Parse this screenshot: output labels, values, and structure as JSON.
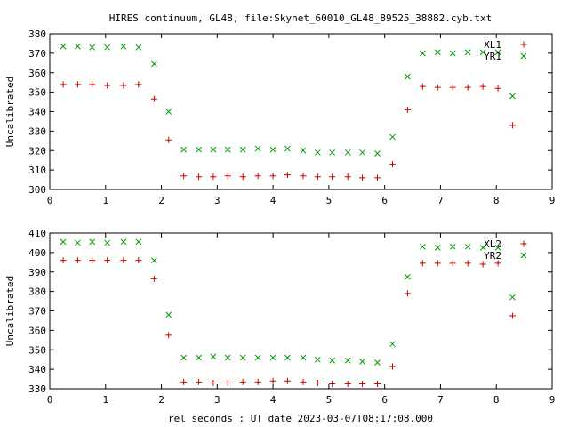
{
  "title": "HIRES continuum, GL48, file:Skynet_60010_GL48_89525_38882.cyb.txt",
  "xlabel": "rel seconds : UT date 2023-03-07T08:17:08.000",
  "colors": {
    "red": "#cc0000",
    "green": "#009900"
  },
  "chart_data": [
    {
      "type": "scatter",
      "ylabel": "Uncalibrated",
      "xlim": [
        0,
        9
      ],
      "ylim": [
        300,
        380
      ],
      "xticks": [
        0,
        1,
        2,
        3,
        4,
        5,
        6,
        7,
        8,
        9
      ],
      "yticks": [
        300,
        310,
        320,
        330,
        340,
        350,
        360,
        370,
        380
      ],
      "legend_position": "top-right",
      "x": [
        0.24,
        0.5,
        0.76,
        1.03,
        1.32,
        1.59,
        1.87,
        2.13,
        2.4,
        2.67,
        2.93,
        3.19,
        3.46,
        3.73,
        4.0,
        4.26,
        4.54,
        4.8,
        5.06,
        5.34,
        5.6,
        5.87,
        6.14,
        6.41,
        6.68,
        6.95,
        7.22,
        7.49,
        7.76,
        8.03,
        8.29
      ],
      "series": [
        {
          "name": "XL1",
          "marker": "plus",
          "color": "#cc0000",
          "values": [
            354,
            354,
            354,
            353.5,
            353.5,
            354,
            346.5,
            325.5,
            307,
            306.5,
            306.5,
            307,
            306.5,
            307,
            307,
            307.5,
            307,
            306.5,
            306.5,
            306.5,
            306,
            306,
            313,
            341,
            353,
            352.5,
            352.5,
            352.5,
            353,
            352,
            333
          ]
        },
        {
          "name": "YR1",
          "marker": "cross",
          "color": "#009900",
          "values": [
            373.5,
            373.5,
            373,
            373,
            373.5,
            373,
            364.5,
            340,
            320.5,
            320.5,
            320.5,
            320.5,
            320.5,
            321,
            320.5,
            321,
            320,
            319,
            319,
            319,
            319,
            318.5,
            327,
            358,
            370,
            370.5,
            370,
            370.5,
            370.5,
            370.5,
            348
          ]
        }
      ]
    },
    {
      "type": "scatter",
      "ylabel": "Uncalibrated",
      "xlim": [
        0,
        9
      ],
      "ylim": [
        330,
        410
      ],
      "xticks": [
        0,
        1,
        2,
        3,
        4,
        5,
        6,
        7,
        8,
        9
      ],
      "yticks": [
        330,
        340,
        350,
        360,
        370,
        380,
        390,
        400,
        410
      ],
      "legend_position": "top-right",
      "x": [
        0.24,
        0.5,
        0.76,
        1.03,
        1.32,
        1.59,
        1.87,
        2.13,
        2.4,
        2.67,
        2.93,
        3.19,
        3.46,
        3.73,
        4.0,
        4.26,
        4.54,
        4.8,
        5.06,
        5.34,
        5.6,
        5.87,
        6.14,
        6.41,
        6.68,
        6.95,
        7.22,
        7.49,
        7.76,
        8.03,
        8.29
      ],
      "series": [
        {
          "name": "XL2",
          "marker": "plus",
          "color": "#cc0000",
          "values": [
            396,
            396,
            396,
            396,
            396,
            396,
            386.5,
            357.5,
            333.5,
            333.5,
            333,
            333,
            333.5,
            333.5,
            334,
            334,
            333.5,
            333,
            332.5,
            332.5,
            332.5,
            332.5,
            341.5,
            379,
            394.5,
            394.5,
            394.5,
            394.5,
            394,
            394.5,
            367.5
          ]
        },
        {
          "name": "YR2",
          "marker": "cross",
          "color": "#009900",
          "values": [
            405.5,
            405,
            405.5,
            405,
            405.5,
            405.5,
            396,
            368,
            346,
            346,
            346.5,
            346,
            346,
            346,
            346,
            346,
            346,
            345,
            344.5,
            344.5,
            344,
            343.5,
            353,
            387.5,
            403,
            402.5,
            403,
            403,
            402.5,
            402.5,
            377
          ]
        }
      ]
    }
  ]
}
